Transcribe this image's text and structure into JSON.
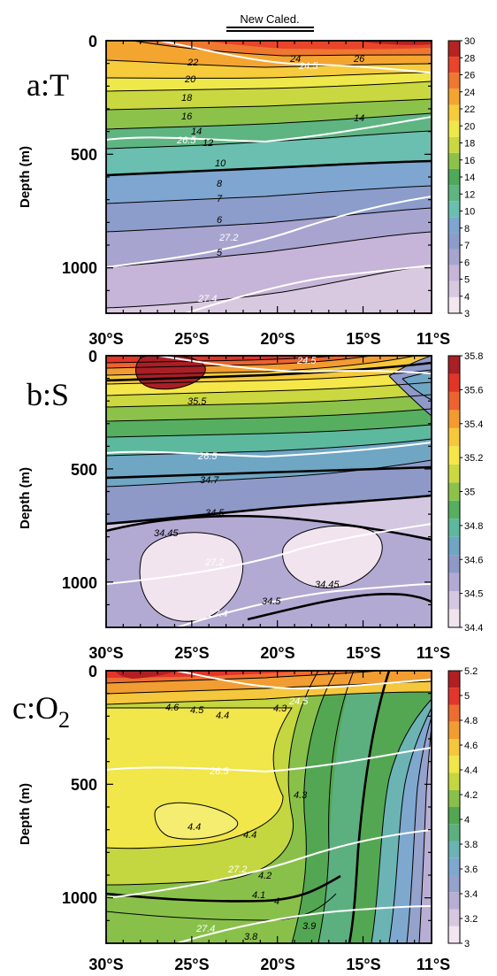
{
  "header": {
    "label": "New Caled."
  },
  "chart_data": [
    {
      "type": "heatmap",
      "panel_label": "a:T",
      "ylabel": "Depth (m)",
      "yticks": [
        "0",
        "500",
        "1000"
      ],
      "xticks": [
        "30°S",
        "25°S",
        "20°S",
        "15°S",
        "11°S"
      ],
      "xlim": [
        -30,
        -11
      ],
      "ylim": [
        1200,
        0
      ],
      "colorbar": {
        "levels": [
          "3",
          "4",
          "5",
          "6",
          "7",
          "8",
          "10",
          "12",
          "14",
          "16",
          "18",
          "20",
          "22",
          "24",
          "26",
          "28",
          "30"
        ],
        "colors": [
          "#f3e7f0",
          "#d9c9e0",
          "#c6b5d8",
          "#a8a4d0",
          "#8c9dcc",
          "#7ea6d0",
          "#6bbfb0",
          "#5fb582",
          "#4ea95a",
          "#8cc24a",
          "#c9d840",
          "#efe84a",
          "#f6cc3c",
          "#f4a530",
          "#ef7830",
          "#e8452a",
          "#b52322"
        ]
      },
      "contour_labels": [
        "22",
        "24.5",
        "24",
        "26",
        "20",
        "18",
        "16",
        "14",
        "14",
        "26.5",
        "12",
        "10",
        "8",
        "7",
        "6",
        "27.2",
        "5",
        "27.4"
      ],
      "profiles": [
        {
          "depth": 0,
          "T": 28
        },
        {
          "depth": 100,
          "T": 23
        },
        {
          "depth": 200,
          "T": 18
        },
        {
          "depth": 300,
          "T": 15
        },
        {
          "depth": 400,
          "T": 12.5
        },
        {
          "depth": 500,
          "T": 10
        },
        {
          "depth": 600,
          "T": 8.5
        },
        {
          "depth": 700,
          "T": 7.2
        },
        {
          "depth": 800,
          "T": 6.3
        },
        {
          "depth": 900,
          "T": 5.5
        },
        {
          "depth": 1000,
          "T": 4.9
        },
        {
          "depth": 1100,
          "T": 4.4
        },
        {
          "depth": 1200,
          "T": 4.0
        }
      ]
    },
    {
      "type": "heatmap",
      "panel_label": "b:S",
      "ylabel": "Depth (m)",
      "yticks": [
        "0",
        "500",
        "1000"
      ],
      "xticks": [
        "30°S",
        "25°S",
        "20°S",
        "15°S",
        "11°S"
      ],
      "xlim": [
        -30,
        -11
      ],
      "ylim": [
        1200,
        0
      ],
      "colorbar": {
        "levels": [
          "34.4",
          "34.5",
          "34.6",
          "34.8",
          "35",
          "35.2",
          "35.4",
          "35.6",
          "35.8"
        ],
        "colors": [
          "#f1e4ef",
          "#d3c7e1",
          "#b3aad3",
          "#8e99c8",
          "#6fa6c4",
          "#5db99e",
          "#56ae60",
          "#8cc24a",
          "#cbd840",
          "#f5e74a",
          "#f6c83a",
          "#f39b30",
          "#ec6330",
          "#e03527",
          "#a81f25"
        ]
      },
      "contour_labels": [
        "24.5",
        "35.5",
        "26.5",
        "34.7",
        "34.5",
        "34.45",
        "27.2",
        "34.45",
        "34.5",
        "27.4"
      ],
      "profiles": [
        {
          "depth": 0,
          "S": 35.7
        },
        {
          "depth": 150,
          "S": 35.65
        },
        {
          "depth": 250,
          "S": 35.5
        },
        {
          "depth": 400,
          "S": 35.1
        },
        {
          "depth": 500,
          "S": 34.7
        },
        {
          "depth": 600,
          "S": 34.58
        },
        {
          "depth": 800,
          "S": 34.45
        },
        {
          "depth": 1000,
          "S": 34.47
        },
        {
          "depth": 1200,
          "S": 34.55
        }
      ]
    },
    {
      "type": "heatmap",
      "panel_label_main": "c:O",
      "panel_label_sub": "2",
      "ylabel": "Depth (m)",
      "yticks": [
        "0",
        "500",
        "1000"
      ],
      "xticks": [
        "30°S",
        "25°S",
        "20°S",
        "15°S",
        "11°S"
      ],
      "xlim": [
        -30,
        -11
      ],
      "ylim": [
        1200,
        0
      ],
      "colorbar": {
        "levels": [
          "3",
          "3.2",
          "3.4",
          "3.6",
          "3.8",
          "4",
          "4.2",
          "4.4",
          "4.6",
          "4.8",
          "5",
          "5.2"
        ],
        "colors": [
          "#f3e6f0",
          "#d7c8e0",
          "#b8aed4",
          "#94a2cc",
          "#7fa8cf",
          "#6cb4b4",
          "#5cb080",
          "#54a752",
          "#89c04a",
          "#c4d640",
          "#f1e64a",
          "#f5c73c",
          "#f29d32",
          "#ec6d30",
          "#e2362a",
          "#b01f24"
        ]
      },
      "contour_labels": [
        "4.6",
        "4.5",
        "4.4",
        "4.3",
        "24.5",
        "26.5",
        "4.3",
        "4.4",
        "4.4",
        "27.2",
        "4.2",
        "4.1",
        "4",
        "3.9",
        "27.4",
        "3.8"
      ],
      "profiles": [
        {
          "depth": 0,
          "O2": 5.0
        },
        {
          "depth": 100,
          "O2": 4.6
        },
        {
          "depth": 300,
          "O2": 4.35
        },
        {
          "depth": 600,
          "O2": 4.4
        },
        {
          "depth": 900,
          "O2": 4.15
        },
        {
          "depth": 1100,
          "O2": 3.9
        },
        {
          "depth": 1200,
          "O2": 3.8
        }
      ]
    }
  ]
}
